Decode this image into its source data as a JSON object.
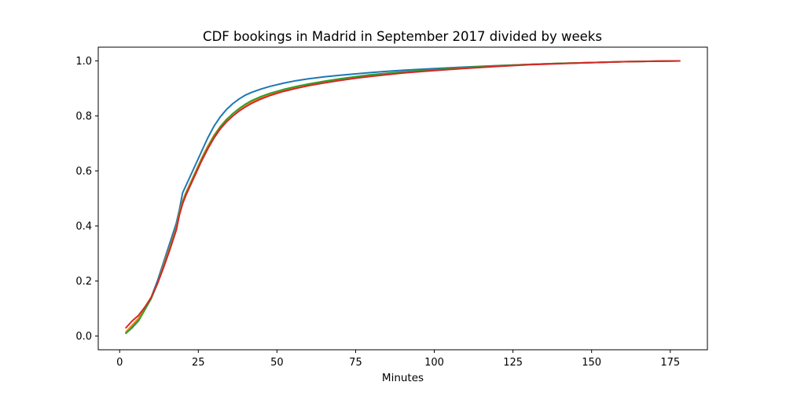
{
  "chart_data": {
    "type": "line",
    "title": "CDF bookings in Madrid in September 2017 divided by weeks",
    "xlabel": "Minutes",
    "ylabel": "",
    "xlim": [
      -6.8,
      186.8
    ],
    "ylim": [
      -0.05,
      1.05
    ],
    "xticks": [
      0,
      25,
      50,
      75,
      100,
      125,
      150,
      175
    ],
    "yticks": [
      0.0,
      0.2,
      0.4,
      0.6,
      0.8,
      1.0
    ],
    "xtick_labels": [
      "0",
      "25",
      "50",
      "75",
      "100",
      "125",
      "150",
      "175"
    ],
    "ytick_labels": [
      "0.0",
      "0.2",
      "0.4",
      "0.6",
      "0.8",
      "1.0"
    ],
    "grid": false,
    "legend": "none",
    "series": [
      {
        "color": "#1f77b4",
        "x": [
          2,
          4,
          6,
          8,
          10,
          12,
          14,
          16,
          18,
          19,
          20,
          21,
          22,
          24,
          26,
          28,
          30,
          32,
          34,
          36,
          38,
          40,
          42,
          45,
          48,
          52,
          56,
          60,
          65,
          70,
          75,
          80,
          85,
          90,
          100,
          110,
          120,
          130,
          140,
          150,
          160,
          170,
          178
        ],
        "y": [
          0.01,
          0.035,
          0.06,
          0.1,
          0.14,
          0.2,
          0.27,
          0.34,
          0.41,
          0.46,
          0.52,
          0.545,
          0.57,
          0.62,
          0.67,
          0.72,
          0.763,
          0.797,
          0.824,
          0.845,
          0.862,
          0.876,
          0.886,
          0.898,
          0.908,
          0.919,
          0.928,
          0.935,
          0.942,
          0.948,
          0.953,
          0.958,
          0.962,
          0.966,
          0.972,
          0.978,
          0.983,
          0.987,
          0.991,
          0.994,
          0.997,
          0.999,
          1.0
        ]
      },
      {
        "color": "#ff7f0e",
        "x": [
          2,
          4,
          6,
          8,
          10,
          12,
          14,
          16,
          18,
          19,
          20,
          21,
          22,
          24,
          26,
          28,
          30,
          32,
          34,
          36,
          38,
          40,
          42,
          45,
          48,
          52,
          56,
          60,
          65,
          70,
          75,
          80,
          85,
          90,
          100,
          110,
          120,
          130,
          140,
          150,
          160,
          170,
          178
        ],
        "y": [
          0.015,
          0.04,
          0.065,
          0.1,
          0.14,
          0.19,
          0.26,
          0.325,
          0.395,
          0.45,
          0.49,
          0.52,
          0.545,
          0.595,
          0.645,
          0.69,
          0.73,
          0.762,
          0.788,
          0.808,
          0.825,
          0.84,
          0.852,
          0.866,
          0.878,
          0.891,
          0.902,
          0.911,
          0.921,
          0.93,
          0.938,
          0.945,
          0.952,
          0.957,
          0.967,
          0.975,
          0.982,
          0.987,
          0.991,
          0.994,
          0.997,
          0.999,
          1.0
        ]
      },
      {
        "color": "#2ca02c",
        "x": [
          2,
          4,
          6,
          8,
          10,
          12,
          14,
          16,
          18,
          19,
          20,
          21,
          22,
          24,
          26,
          28,
          30,
          32,
          34,
          36,
          38,
          40,
          42,
          45,
          48,
          52,
          56,
          60,
          65,
          70,
          75,
          80,
          85,
          90,
          100,
          110,
          120,
          130,
          140,
          150,
          160,
          170,
          178
        ],
        "y": [
          0.01,
          0.03,
          0.055,
          0.095,
          0.135,
          0.19,
          0.255,
          0.32,
          0.39,
          0.445,
          0.485,
          0.515,
          0.54,
          0.59,
          0.64,
          0.685,
          0.726,
          0.76,
          0.787,
          0.809,
          0.827,
          0.843,
          0.856,
          0.871,
          0.883,
          0.896,
          0.907,
          0.916,
          0.926,
          0.935,
          0.943,
          0.95,
          0.955,
          0.96,
          0.968,
          0.976,
          0.982,
          0.987,
          0.991,
          0.994,
          0.997,
          0.999,
          1.0
        ]
      },
      {
        "color": "#d62728",
        "x": [
          2,
          4,
          6,
          8,
          10,
          12,
          14,
          16,
          18,
          19,
          20,
          21,
          22,
          24,
          26,
          28,
          30,
          32,
          34,
          36,
          38,
          40,
          42,
          45,
          48,
          52,
          56,
          60,
          65,
          70,
          75,
          80,
          85,
          90,
          100,
          110,
          120,
          130,
          140,
          150,
          160,
          170,
          178
        ],
        "y": [
          0.03,
          0.055,
          0.075,
          0.105,
          0.14,
          0.19,
          0.25,
          0.315,
          0.385,
          0.44,
          0.48,
          0.51,
          0.535,
          0.585,
          0.635,
          0.68,
          0.72,
          0.753,
          0.779,
          0.8,
          0.818,
          0.833,
          0.846,
          0.862,
          0.875,
          0.889,
          0.9,
          0.91,
          0.92,
          0.929,
          0.937,
          0.944,
          0.95,
          0.956,
          0.965,
          0.973,
          0.98,
          0.986,
          0.99,
          0.994,
          0.997,
          0.999,
          1.0
        ]
      }
    ]
  }
}
